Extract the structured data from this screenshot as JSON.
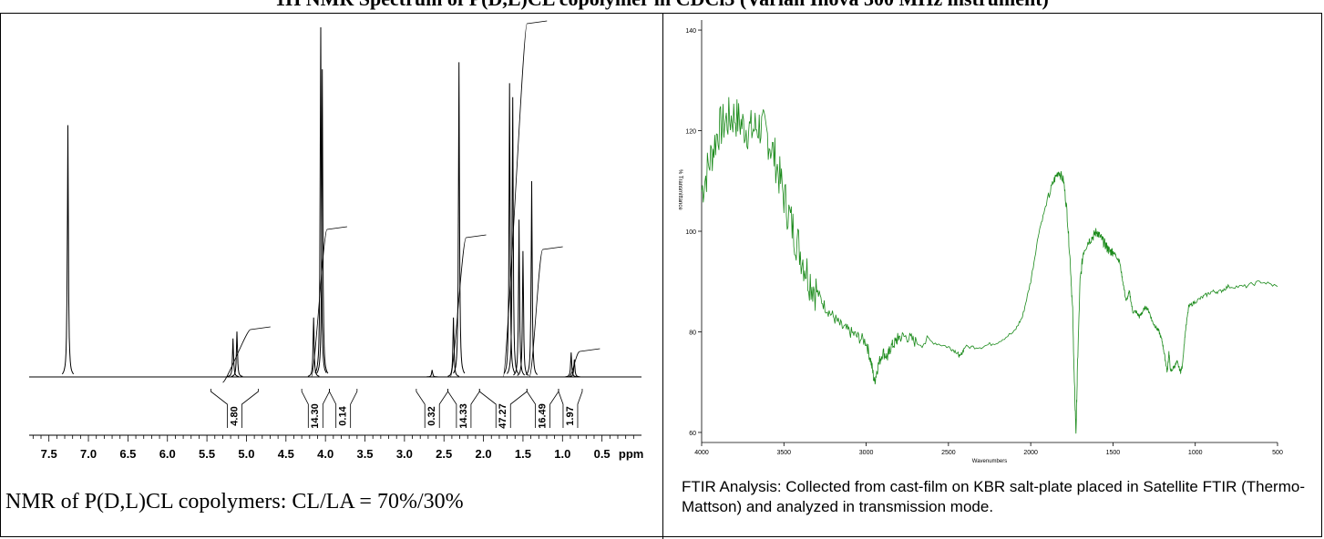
{
  "page": {
    "title": "1H NMR Spectrum of P(D,L)CL copolymer in CDCl3 (Varian Inova 300 MHz instrument)",
    "nmr_caption": "NMR of P(D,L)CL copolymers: CL/LA = 70%/30%",
    "ftir_caption": "FTIR Analysis: Collected from cast-film on KBR salt-plate placed in Satellite FTIR (Thermo-Mattson) and analyzed in transmission mode."
  },
  "chart_data": [
    {
      "type": "line",
      "xlabel": "ppm",
      "xlim": [
        7.75,
        0.0
      ],
      "x_ticks": [
        "7.5",
        "7.0",
        "6.5",
        "6.0",
        "5.5",
        "5.0",
        "4.5",
        "4.0",
        "3.5",
        "3.0",
        "2.5",
        "2.0",
        "1.5",
        "1.0",
        "0.5"
      ],
      "x_tick_values": [
        7.5,
        7.0,
        6.5,
        6.0,
        5.5,
        5.0,
        4.5,
        4.0,
        3.5,
        3.0,
        2.5,
        2.0,
        1.5,
        1.0,
        0.5
      ],
      "peaks": [
        {
          "ppm": 7.26,
          "height": 0.72
        },
        {
          "ppm": 5.17,
          "height": 0.11
        },
        {
          "ppm": 5.12,
          "height": 0.13
        },
        {
          "ppm": 4.15,
          "height": 0.17
        },
        {
          "ppm": 4.06,
          "height": 1.0
        },
        {
          "ppm": 4.04,
          "height": 0.88
        },
        {
          "ppm": 2.65,
          "height": 0.02
        },
        {
          "ppm": 2.38,
          "height": 0.17
        },
        {
          "ppm": 2.31,
          "height": 0.9
        },
        {
          "ppm": 1.67,
          "height": 0.84
        },
        {
          "ppm": 1.63,
          "height": 0.8
        },
        {
          "ppm": 1.55,
          "height": 0.45
        },
        {
          "ppm": 1.5,
          "height": 0.36
        },
        {
          "ppm": 1.39,
          "height": 0.56
        },
        {
          "ppm": 0.89,
          "height": 0.07
        },
        {
          "ppm": 0.85,
          "height": 0.05
        }
      ],
      "integrals": [
        {
          "label": "4.80",
          "from": 5.45,
          "to": 4.85
        },
        {
          "label": "14.30",
          "from": 4.3,
          "to": 3.95
        },
        {
          "label": "0.14",
          "from": 3.95,
          "to": 3.6
        },
        {
          "label": "0.32",
          "from": 2.85,
          "to": 2.45
        },
        {
          "label": "14.33",
          "from": 2.45,
          "to": 2.05
        },
        {
          "label": "47.27",
          "from": 2.05,
          "to": 1.45
        },
        {
          "label": "16.49",
          "from": 1.45,
          "to": 1.05
        },
        {
          "label": "1.97",
          "from": 1.05,
          "to": 0.75
        }
      ]
    },
    {
      "type": "line",
      "xlabel": "Wavenumbers",
      "ylabel": "% Transmittance",
      "xlim": [
        4000,
        500
      ],
      "ylim": [
        58,
        142
      ],
      "x_ticks": [
        "4000",
        "3500",
        "3000",
        "2500",
        "2000",
        "1500",
        "1000",
        "500"
      ],
      "x_tick_values": [
        4000,
        3500,
        3000,
        2500,
        2000,
        1500,
        1000,
        500
      ],
      "y_ticks": [
        "140",
        "120",
        "100",
        "80",
        "60"
      ],
      "y_tick_values": [
        140,
        120,
        100,
        80,
        60
      ],
      "series": [
        {
          "color": "#1a8a1a",
          "x": [
            4000,
            3950,
            3900,
            3850,
            3800,
            3750,
            3700,
            3650,
            3600,
            3550,
            3500,
            3450,
            3400,
            3350,
            3300,
            3250,
            3200,
            3150,
            3100,
            3050,
            3000,
            2970,
            2950,
            2930,
            2900,
            2870,
            2850,
            2820,
            2800,
            2750,
            2700,
            2600,
            2500,
            2450,
            2430,
            2400,
            2300,
            2200,
            2100,
            2050,
            2000,
            1950,
            1900,
            1860,
            1830,
            1800,
            1780,
            1760,
            1745,
            1735,
            1725,
            1715,
            1700,
            1680,
            1650,
            1620,
            1600,
            1580,
            1560,
            1540,
            1520,
            1500,
            1480,
            1460,
            1440,
            1420,
            1400,
            1380,
            1360,
            1340,
            1320,
            1300,
            1280,
            1260,
            1240,
            1220,
            1200,
            1185,
            1170,
            1160,
            1150,
            1130,
            1110,
            1090,
            1080,
            1060,
            1040,
            1000,
            950,
            900,
            850,
            800,
            700,
            600,
            500
          ],
          "y": [
            108,
            114,
            120,
            122,
            123,
            121,
            120,
            121,
            119,
            114,
            107,
            101,
            96,
            91,
            88,
            85,
            83,
            81,
            80,
            79,
            78,
            74,
            70,
            73,
            76,
            75,
            77,
            78,
            79,
            79,
            78,
            78,
            77,
            76,
            75,
            77,
            77,
            78,
            80,
            83,
            90,
            100,
            106,
            110,
            112,
            110,
            104,
            94,
            84,
            70,
            60,
            74,
            90,
            96,
            98,
            99,
            100,
            99,
            98,
            97,
            96,
            96,
            95,
            94,
            90,
            86,
            88,
            84,
            84,
            83,
            84,
            85,
            84,
            82,
            81,
            80,
            78,
            75,
            72,
            76,
            72,
            73,
            74,
            72,
            73,
            80,
            85,
            86,
            87,
            88,
            88,
            89,
            89,
            90,
            89
          ]
        }
      ]
    }
  ]
}
